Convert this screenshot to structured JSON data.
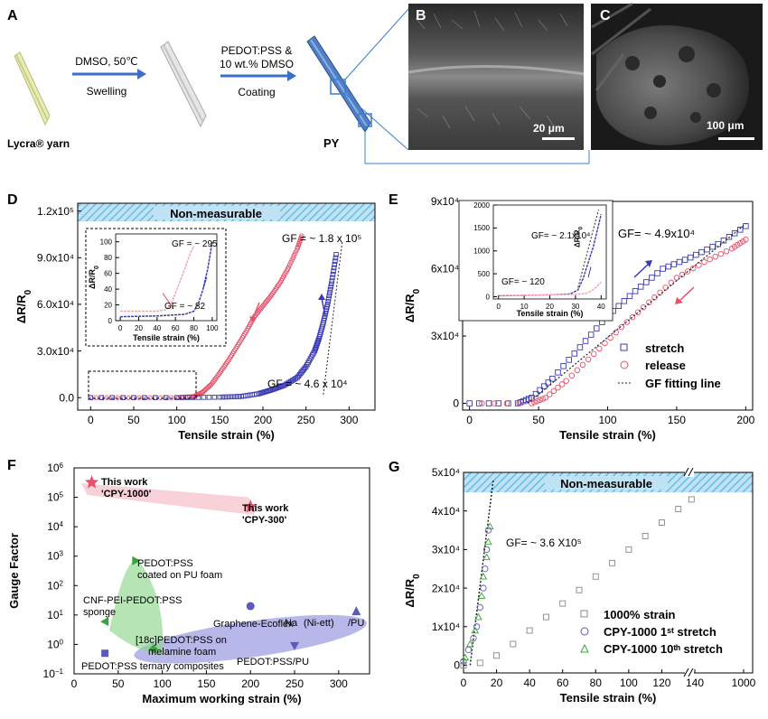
{
  "panel_a": {
    "label": "A",
    "step1": {
      "line1": "DMSO, 50℃",
      "line2": "Swelling"
    },
    "step2": {
      "line1": "PEDOT:PSS &",
      "line2": "10 wt.% DMSO",
      "line3": "Coating"
    },
    "yarn_label": "Lycra® yarn",
    "py_label": "PY"
  },
  "panel_b": {
    "label": "B",
    "scale": "20 μm"
  },
  "panel_c": {
    "label": "C",
    "scale": "100 μm"
  },
  "colors": {
    "stretch": "#3a3ab4",
    "release": "#e8506a",
    "fit": "#222222",
    "banner": "#bfe2f4",
    "hatch": "#5ab6e0"
  },
  "chart_data": [
    {
      "panel": "D",
      "type": "scatter",
      "xlabel": "Tensile strain (%)",
      "ylabel": "ΔR/R0",
      "xlim": [
        -15,
        330
      ],
      "ylim": [
        -8000,
        125000
      ],
      "xticks": [
        "0",
        "50",
        "100",
        "150",
        "200",
        "250",
        "300"
      ],
      "yticks": [
        "0.0",
        "3.0x10⁴",
        "6.0x10⁴",
        "9.0x10⁴",
        "1.2x10⁵"
      ],
      "banner": "Non-measurable",
      "annotations": [
        "GF = ~ 1.8 x 10⁵",
        "GF = ~ 4.6 x 10⁴"
      ],
      "series": [
        {
          "role": "release",
          "points": [
            [
              0,
              0
            ],
            [
              50,
              0
            ],
            [
              100,
              0
            ],
            [
              120,
              800
            ],
            [
              130,
              3500
            ],
            [
              140,
              8500
            ],
            [
              150,
              16000
            ],
            [
              160,
              24000
            ],
            [
              170,
              33000
            ],
            [
              180,
              42000
            ],
            [
              190,
              52000
            ],
            [
              200,
              59000
            ],
            [
              210,
              66000
            ],
            [
              220,
              74000
            ],
            [
              230,
              84000
            ],
            [
              240,
              96000
            ],
            [
              245,
              104000
            ]
          ]
        },
        {
          "role": "stretch",
          "points": [
            [
              0,
              0
            ],
            [
              100,
              0
            ],
            [
              150,
              300
            ],
            [
              175,
              800
            ],
            [
              195,
              2500
            ],
            [
              210,
              5000
            ],
            [
              225,
              8000
            ],
            [
              240,
              13000
            ],
            [
              250,
              20000
            ],
            [
              260,
              30000
            ],
            [
              265,
              38000
            ],
            [
              270,
              48000
            ],
            [
              275,
              60000
            ],
            [
              280,
              75000
            ],
            [
              285,
              92000
            ]
          ]
        }
      ],
      "inset": {
        "xlabel": "Tensile strain (%)",
        "ylabel": "ΔR/R0",
        "xlim": [
          -5,
          105
        ],
        "ylim": [
          0,
          110
        ],
        "xticks": [
          "0",
          "20",
          "40",
          "60",
          "80",
          "100"
        ],
        "yticks": [
          "0",
          "20",
          "40",
          "60",
          "80",
          "100"
        ],
        "annotations": [
          "GF = ~ 295",
          "GF = ~ 82"
        ],
        "series": [
          {
            "role": "release",
            "points": [
              [
                0,
                12
              ],
              [
                20,
                12
              ],
              [
                40,
                12
              ],
              [
                50,
                14
              ],
              [
                55,
                20
              ],
              [
                60,
                35
              ],
              [
                65,
                50
              ],
              [
                70,
                65
              ],
              [
                75,
                82
              ],
              [
                80,
                95
              ]
            ]
          },
          {
            "role": "stretch",
            "points": [
              [
                0,
                5
              ],
              [
                40,
                6
              ],
              [
                70,
                8
              ],
              [
                80,
                12
              ],
              [
                85,
                22
              ],
              [
                90,
                40
              ],
              [
                95,
                65
              ],
              [
                100,
                100
              ]
            ]
          }
        ]
      }
    },
    {
      "panel": "E",
      "type": "scatter",
      "xlabel": "Tensile strain (%)",
      "ylabel": "ΔR/R0",
      "xlim": [
        -5,
        205
      ],
      "ylim": [
        -3000,
        90000
      ],
      "xticks": [
        "0",
        "50",
        "100",
        "150",
        "200"
      ],
      "yticks": [
        "0",
        "3x10⁴",
        "6x10⁴",
        "9x10⁴"
      ],
      "annotations": [
        "GF= ~ 4.9x10⁴"
      ],
      "legend": [
        "stretch",
        "release",
        "GF fitting line"
      ],
      "series": [
        {
          "name": "stretch",
          "points": [
            [
              0,
              0
            ],
            [
              35,
              0
            ],
            [
              45,
              2500
            ],
            [
              60,
              11000
            ],
            [
              80,
              25000
            ],
            [
              100,
              39000
            ],
            [
              120,
              50000
            ],
            [
              140,
              60000
            ],
            [
              160,
              65000
            ],
            [
              180,
              71000
            ],
            [
              200,
              79000
            ]
          ]
        },
        {
          "name": "release",
          "points": [
            [
              0,
              0
            ],
            [
              45,
              0
            ],
            [
              55,
              2500
            ],
            [
              70,
              10000
            ],
            [
              90,
              22000
            ],
            [
              110,
              34000
            ],
            [
              130,
              45000
            ],
            [
              150,
              56000
            ],
            [
              170,
              63000
            ],
            [
              190,
              69000
            ],
            [
              200,
              73000
            ]
          ]
        }
      ],
      "fit": [
        [
          42,
          0
        ],
        [
          200,
          80000
        ]
      ],
      "inset": {
        "xlabel": "Tensile strain (%)",
        "ylabel": "ΔR/R0",
        "xlim": [
          -2,
          42
        ],
        "ylim": [
          -50,
          2000
        ],
        "xticks": [
          "0",
          "10",
          "20",
          "30",
          "40"
        ],
        "yticks": [
          "0",
          "500",
          "1000",
          "1500",
          "2000"
        ],
        "annotations": [
          "GF= ~ 2.1x10⁴",
          "GF= ~ 120"
        ],
        "series": [
          {
            "role": "stretch",
            "points": [
              [
                0,
                20
              ],
              [
                20,
                40
              ],
              [
                28,
                60
              ],
              [
                31,
                150
              ],
              [
                33,
                400
              ],
              [
                35,
                750
              ],
              [
                37,
                1100
              ],
              [
                40,
                1800
              ]
            ]
          },
          {
            "role": "release",
            "points": [
              [
                0,
                30
              ],
              [
                20,
                40
              ],
              [
                30,
                50
              ],
              [
                34,
                70
              ],
              [
                36,
                120
              ],
              [
                38,
                200
              ],
              [
                40,
                320
              ]
            ]
          }
        ]
      }
    },
    {
      "panel": "F",
      "type": "scatter",
      "xlabel": "Maximum working strain (%)",
      "ylabel": "Gauge Factor",
      "xscale": "linear",
      "yscale": "log",
      "xlim": [
        0,
        335
      ],
      "ylim": [
        0.1,
        1000000
      ],
      "xticks": [
        "0",
        "50",
        "100",
        "150",
        "200",
        "250",
        "300"
      ],
      "yticks": [
        "10⁻¹",
        "10⁰",
        "10¹",
        "10²",
        "10³",
        "10⁴",
        "10⁵",
        "10⁶"
      ],
      "points": [
        {
          "label": "This work 'CPY-1000'",
          "x": 20,
          "y": 320000,
          "marker": "star",
          "color": "#e8506a"
        },
        {
          "label": "This work 'CPY-300'",
          "x": 200,
          "y": 48000,
          "marker": "star",
          "color": "#e8506a"
        },
        {
          "label": "PEDOT:PSS coated on PU foam",
          "x": 70,
          "y": 700,
          "marker": "triangle-right",
          "color": "#3aa23a"
        },
        {
          "label": "CNF-PEI-PEDOT:PSS sponge",
          "x": 35,
          "y": 6,
          "marker": "triangle-left",
          "color": "#3aa23a"
        },
        {
          "label": "[18c]PEDOT:PSS on melamine foam",
          "x": 90,
          "y": 0.7,
          "marker": "diamond",
          "color": "#3aa23a"
        },
        {
          "label": "Graphene-Ecoflex",
          "x": 200,
          "y": 20,
          "marker": "circle",
          "color": "#5a5ab8"
        },
        {
          "label": "Na(Ni-ett)/PU",
          "x": 320,
          "y": 13,
          "marker": "triangle-up",
          "color": "#5a5ab8"
        },
        {
          "label": "PEDOT:PSS/PU",
          "x": 250,
          "y": 0.9,
          "marker": "triangle-down",
          "color": "#5a5ab8"
        },
        {
          "label": "PEDOT:PSS ternary composites",
          "x": 35,
          "y": 0.5,
          "marker": "square",
          "color": "#5a5ab8"
        }
      ]
    },
    {
      "panel": "G",
      "type": "scatter",
      "xlabel": "Tensile strain (%)",
      "ylabel": "ΔR/R0",
      "xlim": [
        0,
        175
      ],
      "ylim": [
        -2000,
        50000
      ],
      "xticks": [
        "0",
        "20",
        "40",
        "60",
        "80",
        "100",
        "120",
        "140",
        "1000"
      ],
      "yticks": [
        "0",
        "1x10⁴",
        "2x10⁴",
        "3x10⁴",
        "4x10⁴",
        "5x10⁴"
      ],
      "axis_break": true,
      "banner": "Non-measurable",
      "annotations": [
        "GF= ~ 3.6 X10⁵"
      ],
      "legend": [
        "1000% strain",
        "CPY-1000 1ˢᵗ stretch",
        "CPY-1000 10ᵗʰ stretch"
      ],
      "series": [
        {
          "name": "1000% strain",
          "points": [
            [
              0,
              0
            ],
            [
              10,
              600
            ],
            [
              20,
              2500
            ],
            [
              30,
              5500
            ],
            [
              40,
              9000
            ],
            [
              50,
              12500
            ],
            [
              60,
              16000
            ],
            [
              70,
              19500
            ],
            [
              80,
              23000
            ],
            [
              90,
              26500
            ],
            [
              100,
              30000
            ],
            [
              110,
              33500
            ],
            [
              120,
              37000
            ],
            [
              130,
              40500
            ],
            [
              138,
              43000
            ]
          ]
        },
        {
          "name": "CPY-1000 1st stretch",
          "points": [
            [
              0,
              1000
            ],
            [
              3,
              4000
            ],
            [
              6,
              7000
            ],
            [
              8,
              10000
            ],
            [
              10,
              15000
            ],
            [
              12,
              20000
            ],
            [
              13,
              25000
            ],
            [
              14,
              30000
            ],
            [
              15,
              35000
            ]
          ]
        },
        {
          "name": "CPY-1000 10th stretch",
          "points": [
            [
              1,
              2000
            ],
            [
              4,
              5500
            ],
            [
              7,
              9000
            ],
            [
              9,
              12500
            ],
            [
              11,
              18000
            ],
            [
              12,
              23000
            ],
            [
              14,
              28000
            ],
            [
              15,
              32000
            ],
            [
              16,
              36000
            ]
          ]
        }
      ],
      "fit": [
        [
          4,
          0
        ],
        [
          18,
          48000
        ]
      ]
    }
  ]
}
